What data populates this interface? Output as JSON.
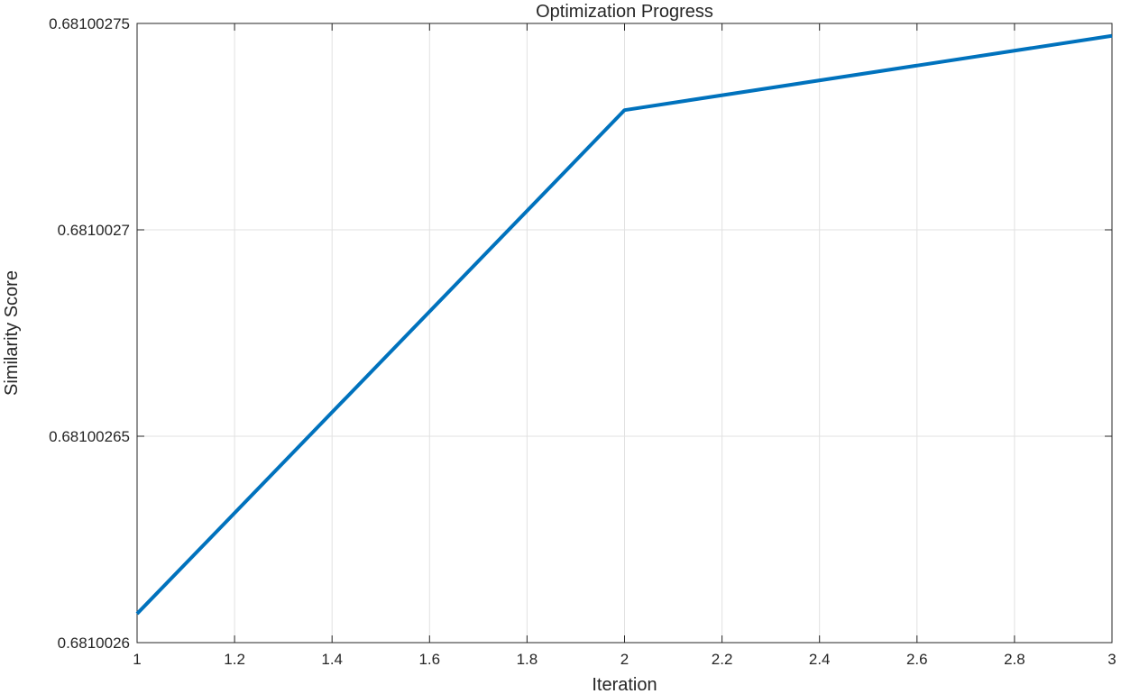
{
  "chart_data": {
    "type": "line",
    "title": "Optimization Progress",
    "xlabel": "Iteration",
    "ylabel": "Similarity Score",
    "xlim": [
      1,
      3
    ],
    "ylim": [
      0.6810026,
      0.68100275
    ],
    "x_ticks": [
      1,
      1.2,
      1.4,
      1.6,
      1.8,
      2,
      2.2,
      2.4,
      2.6,
      2.8,
      3
    ],
    "x_tick_labels": [
      "1",
      "1.2",
      "1.4",
      "1.6",
      "1.8",
      "2",
      "2.2",
      "2.4",
      "2.6",
      "2.8",
      "3"
    ],
    "y_ticks": [
      0.6810026,
      0.68100265,
      0.6810027,
      0.68100275
    ],
    "y_tick_labels": [
      "0.6810026",
      "0.68100265",
      "0.6810027",
      "0.68100275"
    ],
    "grid": true,
    "series": [
      {
        "x": [
          1,
          2,
          3
        ],
        "values": [
          0.681002607,
          0.681002729,
          0.681002747
        ],
        "color": "#0072BD"
      }
    ]
  }
}
